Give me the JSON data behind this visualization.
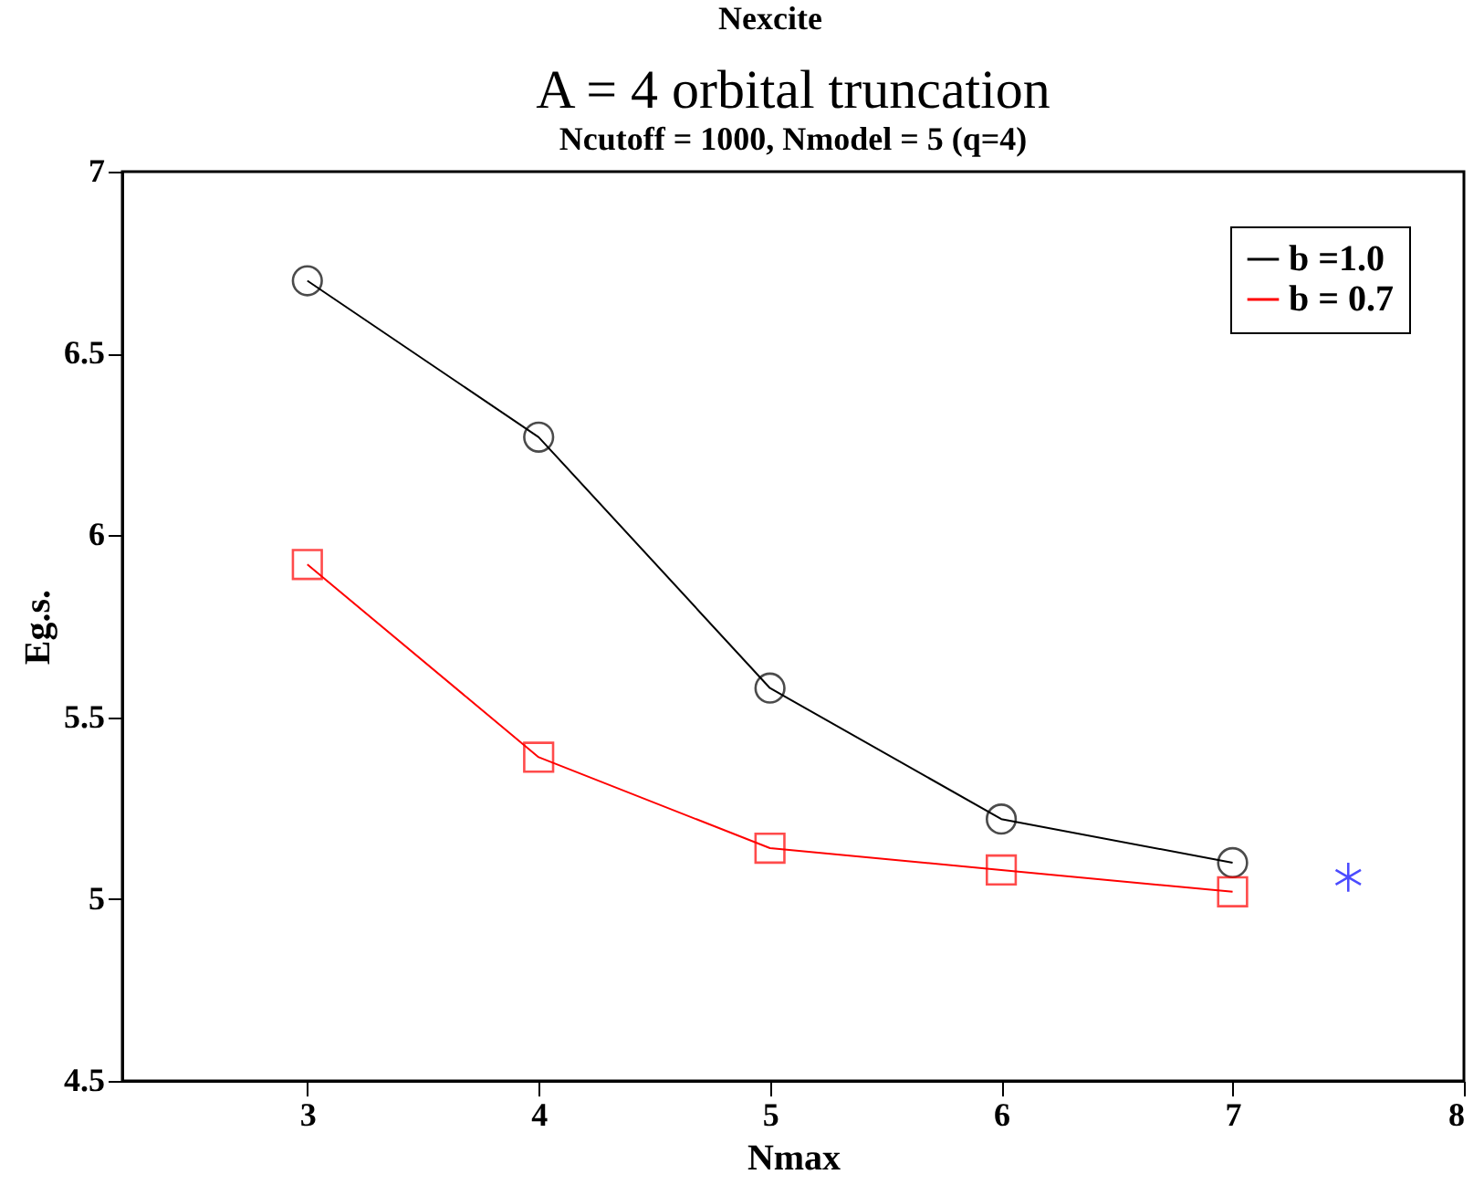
{
  "chart_data": {
    "type": "line",
    "title": "A = 4 orbital truncation",
    "subtitle": "Ncutoff = 1000, Nmodel = 5 (q=4)",
    "xlabel": "Nmax",
    "ylabel": "Eg.s.",
    "annotations": [
      "Nexcite"
    ],
    "x": [
      3,
      4,
      5,
      6,
      7
    ],
    "series": [
      {
        "name": "b =1.0",
        "color": "#000000",
        "marker": "circle",
        "values": [
          6.7,
          6.27,
          5.58,
          5.22,
          5.1
        ]
      },
      {
        "name": "b = 0.7",
        "color": "#ff0000",
        "marker": "square",
        "values": [
          5.92,
          5.39,
          5.14,
          5.08,
          5.02
        ]
      },
      {
        "type": "scatter",
        "color": "#0000ff",
        "marker": "cross",
        "x": [
          7.5
        ],
        "values": [
          5.06
        ]
      }
    ],
    "xlim": [
      2.2,
      8
    ],
    "xticks": [
      3,
      4,
      5,
      6,
      7,
      8
    ],
    "ylim": [
      4.5,
      7
    ],
    "yticks": [
      4.5,
      5,
      5.5,
      6,
      6.5,
      7
    ],
    "grid": false,
    "legend": "top right",
    "line_style": "solid"
  }
}
